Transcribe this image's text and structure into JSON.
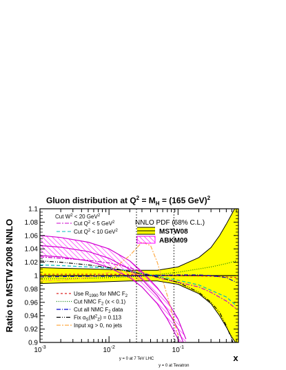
{
  "chart_data": {
    "type": "line",
    "title": "Gluon distribution at Q² = M²H = (165 GeV)²",
    "title_parts": {
      "main": "Gluon distribution at Q",
      "sup1": "2",
      "mid": " = M",
      "sub": "H",
      "end": " = (165 GeV)",
      "sup2": "2"
    },
    "xlabel": "x",
    "ylabel": "Ratio to MSTW 2008 NNLO",
    "xscale": "log",
    "xlim": [
      0.001,
      0.75
    ],
    "ylim": [
      0.9,
      1.1
    ],
    "x_ticks": [
      {
        "value": 0.001,
        "base": "10",
        "exp": "-3"
      },
      {
        "value": 0.01,
        "base": "10",
        "exp": "-2"
      },
      {
        "value": 0.1,
        "base": "10",
        "exp": "-1"
      }
    ],
    "y_ticks": [
      "0.9",
      "0.92",
      "0.94",
      "0.96",
      "0.98",
      "1",
      "1.02",
      "1.04",
      "1.06",
      "1.08",
      "1.1"
    ],
    "markers": [
      {
        "x": 0.025,
        "label": "y = 0 at 7 TeV LHC"
      },
      {
        "x": 0.087,
        "label": "y = 0 at Tevatron"
      }
    ],
    "legend_band_title": "NNLO PDF (68% C.L.)",
    "bands": [
      {
        "name": "MSTW08",
        "color": "#ffff00",
        "edge": "#000000",
        "x": [
          0.001,
          0.002,
          0.005,
          0.01,
          0.02,
          0.05,
          0.1,
          0.2,
          0.3,
          0.4,
          0.5,
          0.6,
          0.7,
          0.75
        ],
        "upper": [
          1.012,
          1.011,
          1.01,
          1.009,
          1.008,
          1.008,
          1.013,
          1.027,
          1.042,
          1.06,
          1.077,
          1.092,
          1.105,
          1.11
        ],
        "lower": [
          0.988,
          0.989,
          0.99,
          0.991,
          0.992,
          0.992,
          0.987,
          0.973,
          0.958,
          0.94,
          0.923,
          0.908,
          0.898,
          0.895
        ]
      },
      {
        "name": "ABKM09",
        "color": "#ff00ff",
        "edge": "#d000d0",
        "x": [
          0.001,
          0.002,
          0.005,
          0.01,
          0.02,
          0.03,
          0.05,
          0.07,
          0.1,
          0.13
        ],
        "upper": [
          1.06,
          1.057,
          1.05,
          1.04,
          1.022,
          1.006,
          0.982,
          0.962,
          0.935,
          0.905
        ],
        "lower": [
          1.03,
          1.028,
          1.022,
          1.012,
          0.997,
          0.983,
          0.958,
          0.935,
          0.905,
          0.875
        ]
      }
    ],
    "series": [
      {
        "name": "Cut W² < 20 GeV²",
        "color": "#000000",
        "dash": "",
        "legend_group": "top",
        "x": [
          0.001,
          0.01,
          0.03,
          0.1,
          0.3,
          0.75
        ],
        "y": [
          1.0,
          1.0,
          1.0,
          1.0,
          1.0,
          1.0
        ]
      },
      {
        "name": "Cut Q² < 5 GeV²",
        "color": "#cc00cc",
        "dash": "6,2,2,2",
        "legend_group": "top",
        "x": [
          0.001,
          0.002,
          0.005,
          0.01,
          0.02,
          0.03,
          0.05,
          0.1,
          0.2,
          0.3,
          0.5,
          0.7
        ],
        "y": [
          1.028,
          1.026,
          1.023,
          1.019,
          1.012,
          1.005,
          0.997,
          0.99,
          0.983,
          0.975,
          0.962,
          0.95
        ]
      },
      {
        "name": "Cut Q² < 10 GeV²",
        "color": "#00bbbb",
        "dash": "5,3",
        "legend_group": "top",
        "x": [
          0.001,
          0.002,
          0.005,
          0.01,
          0.02,
          0.03,
          0.05,
          0.1,
          0.2,
          0.3,
          0.5,
          0.7
        ],
        "y": [
          1.016,
          1.015,
          1.013,
          1.011,
          1.007,
          1.003,
          0.999,
          0.993,
          0.986,
          0.978,
          0.968,
          0.955
        ]
      },
      {
        "name": "Use R1990 for NMC F2",
        "label_parts": [
          "Use R",
          "1990",
          " for NMC F",
          "2"
        ],
        "color": "#dd2222",
        "dash": "3,3",
        "legend_group": "bottom",
        "x": [
          0.001,
          0.005,
          0.01,
          0.03,
          0.1,
          0.3,
          0.5,
          0.7
        ],
        "y": [
          1.002,
          1.002,
          1.002,
          1.001,
          1.0,
          0.999,
          0.998,
          0.997
        ]
      },
      {
        "name": "Cut NMC F2 (x < 0.1)",
        "label_parts": [
          "Cut NMC F",
          "2",
          " (x < 0.1)",
          ""
        ],
        "color": "#007700",
        "dash": "1,2",
        "legend_group": "bottom",
        "x": [
          0.001,
          0.005,
          0.01,
          0.03,
          0.1,
          0.2,
          0.3,
          0.5,
          0.7
        ],
        "y": [
          0.995,
          0.996,
          0.997,
          0.999,
          1.005,
          1.01,
          1.013,
          1.018,
          1.022
        ]
      },
      {
        "name": "Cut all NMC F2 data",
        "label_parts": [
          "Cut all NMC F",
          "2",
          " data",
          ""
        ],
        "color": "#0000cc",
        "dash": "6,2,1,2",
        "legend_group": "bottom",
        "x": [
          0.001,
          0.005,
          0.01,
          0.03,
          0.1,
          0.2,
          0.3,
          0.5,
          0.7
        ],
        "y": [
          0.998,
          0.999,
          0.999,
          1.0,
          1.001,
          1.001,
          1.0,
          0.997,
          0.99
        ]
      },
      {
        "name": "Fix αS(M²Z) = 0.113",
        "label_parts": [
          "Fix α",
          "S",
          "(M",
          "Z",
          ") = 0.113"
        ],
        "color": "#000000",
        "dash": "6,2,1,2,1,2",
        "legend_group": "bottom",
        "x": [
          0.001,
          0.002,
          0.005,
          0.01,
          0.02,
          0.05,
          0.1,
          0.2,
          0.3,
          0.4,
          0.5,
          0.6,
          0.7
        ],
        "y": [
          1.022,
          1.02,
          1.016,
          1.012,
          1.006,
          0.998,
          0.99,
          0.975,
          0.96,
          0.945,
          0.925,
          0.905,
          0.885
        ]
      },
      {
        "name": "Input xg > 0, no jets",
        "color": "#ffaa44",
        "dash": "6,2,2,2",
        "legend_group": "bottom",
        "x": [
          0.001,
          0.002,
          0.005,
          0.01,
          0.02,
          0.03,
          0.04,
          0.05,
          0.07,
          0.1
        ],
        "y": [
          0.992,
          0.993,
          0.997,
          1.005,
          1.03,
          1.05,
          1.045,
          1.02,
          0.97,
          0.91
        ]
      }
    ]
  }
}
